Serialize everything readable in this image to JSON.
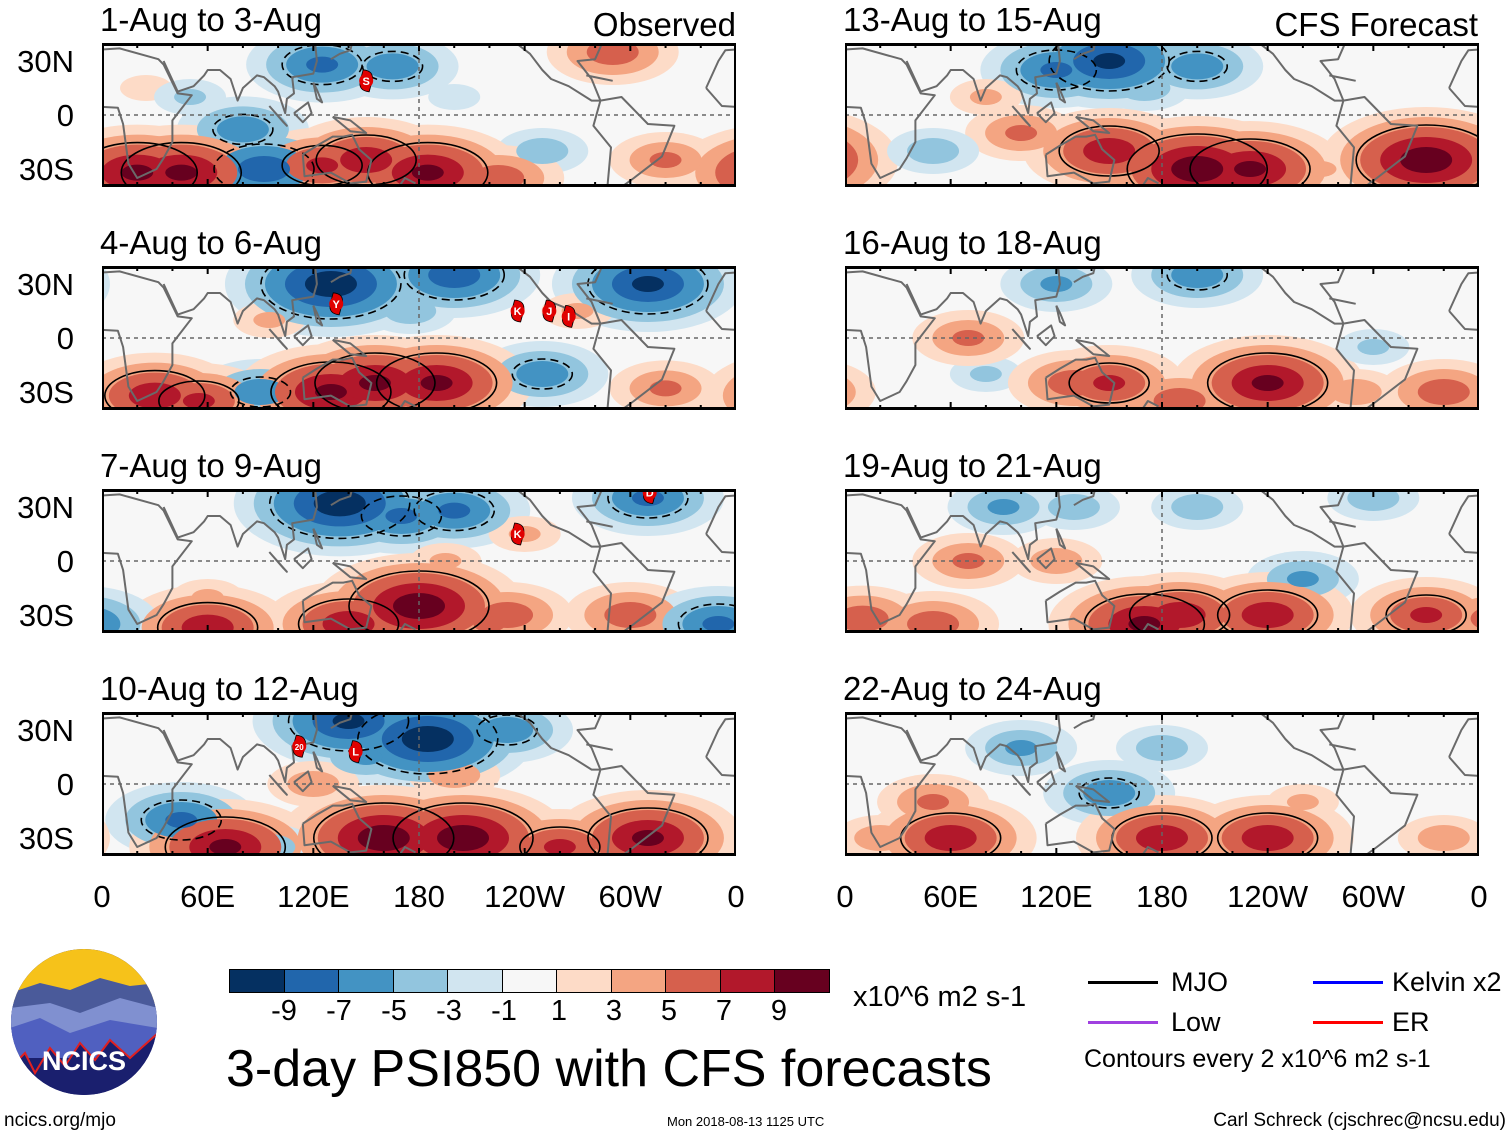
{
  "figure": {
    "title": "3-day PSI850 with CFS forecasts",
    "observed_label": "Observed",
    "forecast_label": "CFS Forecast",
    "units": "x10^6 m2 s-1",
    "contour_note": "Contours every 2 x10^6 m2 s-1",
    "website": "ncics.org/mjo",
    "timestamp": "Mon 2018-08-13 1125 UTC",
    "author": "Carl Schreck (cjschrec@ncsu.edu)",
    "logo_text": "NCICS"
  },
  "axes": {
    "lat_labels": [
      "30N",
      "0",
      "30S"
    ],
    "lon_labels": [
      "0",
      "60E",
      "120E",
      "180",
      "120W",
      "60W",
      "0"
    ]
  },
  "colorbar": {
    "colors": [
      "#053061",
      "#2166ac",
      "#4393c3",
      "#92c5de",
      "#d1e5f0",
      "#f7f7f7",
      "#fddbc7",
      "#f4a582",
      "#d6604d",
      "#b2182b",
      "#67001f"
    ],
    "ticks": [
      "-9",
      "-7",
      "-5",
      "-3",
      "-1",
      "1",
      "3",
      "5",
      "7",
      "9"
    ]
  },
  "legend": [
    {
      "label": "MJO",
      "color": "#000000"
    },
    {
      "label": "Kelvin x2",
      "color": "#0000ff"
    },
    {
      "label": "Low",
      "color": "#a040e0"
    },
    {
      "label": "ER",
      "color": "#ff0000"
    }
  ],
  "chart_data": {
    "type": "map",
    "lon_range": [
      0,
      360
    ],
    "lat_range": [
      -40,
      40
    ],
    "observed": [
      {
        "title": "1-Aug to 3-Aug",
        "storms": [
          {
            "label": "S",
            "lon": 150,
            "lat": 19
          }
        ],
        "anomalies": [
          [
            125,
            28,
            -7
          ],
          [
            165,
            27,
            -6
          ],
          [
            80,
            -8,
            -6
          ],
          [
            92,
            -30,
            -8
          ],
          [
            250,
            -20,
            -4
          ],
          [
            20,
            -32,
            9
          ],
          [
            45,
            -32,
            9
          ],
          [
            125,
            -28,
            7
          ],
          [
            150,
            -25,
            8
          ],
          [
            185,
            -32,
            9
          ],
          [
            225,
            -35,
            6
          ],
          [
            290,
            35,
            6
          ],
          [
            320,
            -25,
            5
          ],
          [
            25,
            15,
            2
          ],
          [
            200,
            10,
            -2
          ],
          [
            50,
            10,
            -3
          ]
        ]
      },
      {
        "title": "4-Aug to 6-Aug",
        "storms": [
          {
            "label": "Y",
            "lon": 133,
            "lat": 19
          },
          {
            "label": "K",
            "lon": 236,
            "lat": 15
          },
          {
            "label": "J",
            "lon": 254,
            "lat": 15
          },
          {
            "label": "I",
            "lon": 265,
            "lat": 12
          }
        ],
        "anomalies": [
          [
            130,
            30,
            -10
          ],
          [
            200,
            35,
            -8
          ],
          [
            310,
            30,
            -9
          ],
          [
            175,
            15,
            -4
          ],
          [
            250,
            -20,
            -6
          ],
          [
            170,
            -25,
            -3
          ],
          [
            90,
            -30,
            -6
          ],
          [
            30,
            -32,
            8
          ],
          [
            55,
            -35,
            7
          ],
          [
            130,
            -30,
            9
          ],
          [
            155,
            -25,
            9
          ],
          [
            190,
            -25,
            9
          ],
          [
            320,
            -28,
            5
          ],
          [
            95,
            10,
            3
          ],
          [
            270,
            15,
            3
          ]
        ]
      },
      {
        "title": "7-Aug to 9-Aug",
        "storms": [
          {
            "label": "K",
            "lon": 236,
            "lat": 15
          },
          {
            "label": "D",
            "lon": 311,
            "lat": 38
          }
        ],
        "anomalies": [
          [
            135,
            32,
            -10
          ],
          [
            170,
            25,
            -7
          ],
          [
            200,
            28,
            -7
          ],
          [
            310,
            35,
            -7
          ],
          [
            240,
            15,
            3
          ],
          [
            180,
            -25,
            10
          ],
          [
            140,
            -35,
            8
          ],
          [
            60,
            -37,
            8
          ],
          [
            230,
            -30,
            6
          ],
          [
            300,
            -30,
            6
          ],
          [
            220,
            -35,
            5
          ],
          [
            350,
            -35,
            -7
          ],
          [
            195,
            0,
            3
          ],
          [
            60,
            -20,
            3
          ]
        ]
      },
      {
        "title": "10-Aug to 12-Aug",
        "storms": [
          {
            "label": "20",
            "lon": 112,
            "lat": 21
          },
          {
            "label": "L",
            "lon": 144,
            "lat": 18
          }
        ],
        "anomalies": [
          [
            140,
            35,
            -9
          ],
          [
            185,
            25,
            -10
          ],
          [
            230,
            30,
            -6
          ],
          [
            150,
            15,
            -5
          ],
          [
            45,
            -20,
            -7
          ],
          [
            70,
            -35,
            9
          ],
          [
            160,
            -30,
            10
          ],
          [
            205,
            -30,
            10
          ],
          [
            260,
            -35,
            7
          ],
          [
            310,
            -30,
            9
          ],
          [
            95,
            -35,
            -4
          ],
          [
            200,
            5,
            4
          ],
          [
            120,
            0,
            4
          ]
        ]
      }
    ],
    "forecast": [
      {
        "title": "13-Aug to 15-Aug",
        "storms": [],
        "anomalies": [
          [
            120,
            25,
            -7
          ],
          [
            150,
            30,
            -9
          ],
          [
            200,
            27,
            -6
          ],
          [
            170,
            15,
            -4
          ],
          [
            150,
            -20,
            8
          ],
          [
            200,
            -30,
            10
          ],
          [
            230,
            -30,
            9
          ],
          [
            330,
            -25,
            10
          ],
          [
            100,
            -10,
            5
          ],
          [
            80,
            10,
            3
          ],
          [
            50,
            -20,
            -4
          ],
          [
            270,
            -30,
            3
          ]
        ]
      },
      {
        "title": "16-Aug to 18-Aug",
        "storms": [],
        "anomalies": [
          [
            120,
            30,
            -5
          ],
          [
            200,
            35,
            -6
          ],
          [
            80,
            -20,
            -3
          ],
          [
            70,
            0,
            5
          ],
          [
            130,
            -25,
            6
          ],
          [
            150,
            -25,
            7
          ],
          [
            240,
            -25,
            9
          ],
          [
            290,
            -30,
            4
          ],
          [
            190,
            -35,
            6
          ],
          [
            340,
            -30,
            6
          ],
          [
            300,
            -5,
            -3
          ]
        ]
      },
      {
        "title": "19-Aug to 21-Aug",
        "storms": [],
        "anomalies": [
          [
            90,
            30,
            -5
          ],
          [
            130,
            30,
            -4
          ],
          [
            200,
            30,
            -4
          ],
          [
            260,
            -10,
            -5
          ],
          [
            70,
            0,
            5
          ],
          [
            120,
            0,
            4
          ],
          [
            170,
            -35,
            9
          ],
          [
            190,
            -30,
            8
          ],
          [
            240,
            -30,
            8
          ],
          [
            330,
            -30,
            7
          ],
          [
            10,
            -32,
            6
          ],
          [
            50,
            -35,
            6
          ],
          [
            300,
            35,
            -4
          ]
        ]
      },
      {
        "title": "22-Aug to 24-Aug",
        "storms": [],
        "anomalies": [
          [
            100,
            20,
            -5
          ],
          [
            150,
            -5,
            -6
          ],
          [
            180,
            20,
            -4
          ],
          [
            50,
            -10,
            5
          ],
          [
            60,
            -30,
            8
          ],
          [
            180,
            -30,
            8
          ],
          [
            240,
            -30,
            8
          ],
          [
            260,
            -10,
            3
          ],
          [
            20,
            -30,
            4
          ],
          [
            340,
            -30,
            4
          ]
        ]
      }
    ]
  }
}
